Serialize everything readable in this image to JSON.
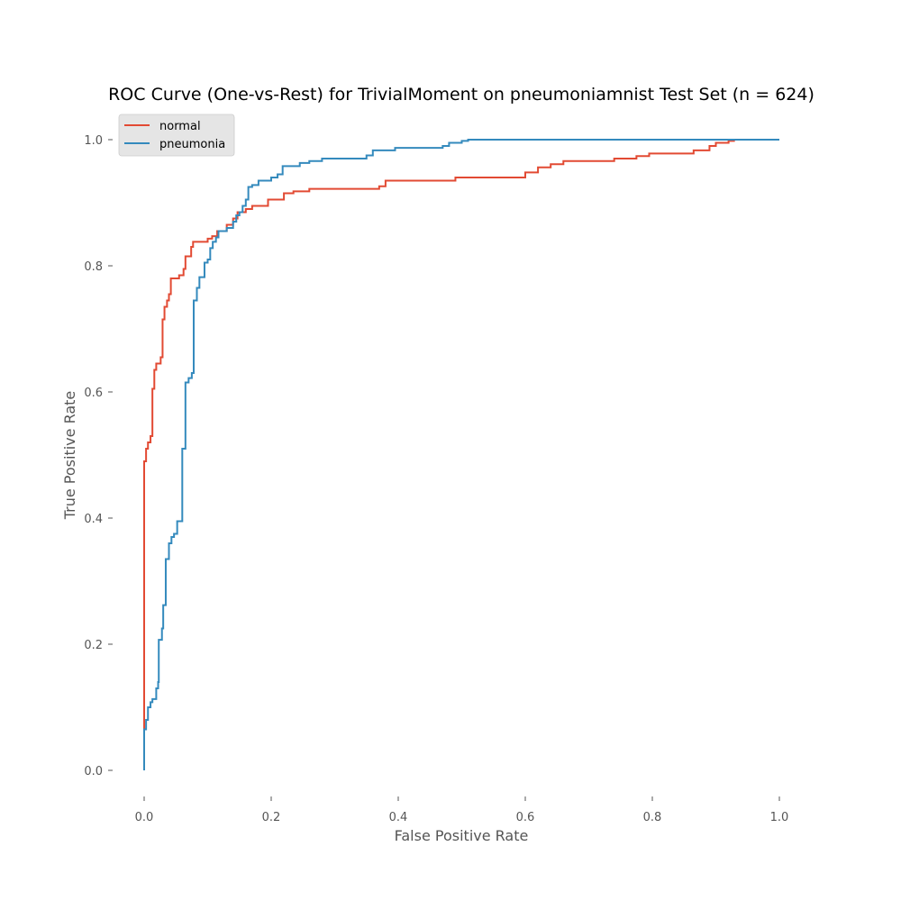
{
  "chart_data": {
    "type": "line",
    "title": "ROC Curve (One-vs-Rest) for TrivialMoment on pneumoniamnist Test Set (n = 624)",
    "xlabel": "False Positive Rate",
    "ylabel": "True Positive Rate",
    "xlim": [
      0.0,
      1.0
    ],
    "ylim": [
      0.0,
      1.0
    ],
    "xticks": [
      "0.0",
      "0.2",
      "0.4",
      "0.6",
      "0.8",
      "1.0"
    ],
    "yticks": [
      "0.0",
      "0.2",
      "0.4",
      "0.6",
      "0.8",
      "1.0"
    ],
    "grid": false,
    "legend_position": "upper-left",
    "series": [
      {
        "name": "normal",
        "color": "#E24A33",
        "points": [
          [
            0.0,
            0.0
          ],
          [
            0.0,
            0.49
          ],
          [
            0.003,
            0.49
          ],
          [
            0.003,
            0.51
          ],
          [
            0.006,
            0.51
          ],
          [
            0.006,
            0.52
          ],
          [
            0.01,
            0.52
          ],
          [
            0.01,
            0.53
          ],
          [
            0.013,
            0.53
          ],
          [
            0.013,
            0.605
          ],
          [
            0.016,
            0.605
          ],
          [
            0.016,
            0.635
          ],
          [
            0.019,
            0.635
          ],
          [
            0.019,
            0.645
          ],
          [
            0.026,
            0.645
          ],
          [
            0.026,
            0.655
          ],
          [
            0.029,
            0.655
          ],
          [
            0.029,
            0.715
          ],
          [
            0.032,
            0.715
          ],
          [
            0.032,
            0.735
          ],
          [
            0.036,
            0.735
          ],
          [
            0.036,
            0.745
          ],
          [
            0.039,
            0.745
          ],
          [
            0.039,
            0.755
          ],
          [
            0.042,
            0.755
          ],
          [
            0.042,
            0.78
          ],
          [
            0.055,
            0.78
          ],
          [
            0.055,
            0.785
          ],
          [
            0.062,
            0.785
          ],
          [
            0.062,
            0.795
          ],
          [
            0.065,
            0.795
          ],
          [
            0.065,
            0.815
          ],
          [
            0.074,
            0.815
          ],
          [
            0.074,
            0.83
          ],
          [
            0.077,
            0.83
          ],
          [
            0.077,
            0.838
          ],
          [
            0.1,
            0.838
          ],
          [
            0.1,
            0.843
          ],
          [
            0.107,
            0.843
          ],
          [
            0.107,
            0.847
          ],
          [
            0.115,
            0.847
          ],
          [
            0.115,
            0.855
          ],
          [
            0.13,
            0.855
          ],
          [
            0.13,
            0.865
          ],
          [
            0.14,
            0.865
          ],
          [
            0.14,
            0.875
          ],
          [
            0.147,
            0.875
          ],
          [
            0.147,
            0.885
          ],
          [
            0.16,
            0.885
          ],
          [
            0.16,
            0.89
          ],
          [
            0.17,
            0.89
          ],
          [
            0.17,
            0.895
          ],
          [
            0.195,
            0.895
          ],
          [
            0.195,
            0.905
          ],
          [
            0.22,
            0.905
          ],
          [
            0.22,
            0.915
          ],
          [
            0.235,
            0.915
          ],
          [
            0.235,
            0.918
          ],
          [
            0.26,
            0.918
          ],
          [
            0.26,
            0.922
          ],
          [
            0.37,
            0.922
          ],
          [
            0.37,
            0.926
          ],
          [
            0.38,
            0.926
          ],
          [
            0.38,
            0.935
          ],
          [
            0.49,
            0.935
          ],
          [
            0.49,
            0.94
          ],
          [
            0.6,
            0.94
          ],
          [
            0.6,
            0.948
          ],
          [
            0.62,
            0.948
          ],
          [
            0.62,
            0.956
          ],
          [
            0.64,
            0.956
          ],
          [
            0.64,
            0.961
          ],
          [
            0.66,
            0.961
          ],
          [
            0.66,
            0.966
          ],
          [
            0.74,
            0.966
          ],
          [
            0.74,
            0.97
          ],
          [
            0.775,
            0.97
          ],
          [
            0.775,
            0.974
          ],
          [
            0.795,
            0.974
          ],
          [
            0.795,
            0.978
          ],
          [
            0.865,
            0.978
          ],
          [
            0.865,
            0.983
          ],
          [
            0.89,
            0.983
          ],
          [
            0.89,
            0.99
          ],
          [
            0.9,
            0.99
          ],
          [
            0.9,
            0.995
          ],
          [
            0.92,
            0.995
          ],
          [
            0.92,
            0.998
          ],
          [
            0.93,
            0.998
          ]
        ]
      },
      {
        "name": "pneumonia",
        "color": "#348ABD",
        "points": [
          [
            0.0,
            0.0
          ],
          [
            0.0,
            0.065
          ],
          [
            0.003,
            0.065
          ],
          [
            0.003,
            0.08
          ],
          [
            0.006,
            0.08
          ],
          [
            0.006,
            0.1
          ],
          [
            0.01,
            0.1
          ],
          [
            0.01,
            0.108
          ],
          [
            0.013,
            0.108
          ],
          [
            0.013,
            0.113
          ],
          [
            0.019,
            0.113
          ],
          [
            0.019,
            0.13
          ],
          [
            0.022,
            0.13
          ],
          [
            0.022,
            0.14
          ],
          [
            0.023,
            0.14
          ],
          [
            0.023,
            0.207
          ],
          [
            0.028,
            0.207
          ],
          [
            0.028,
            0.225
          ],
          [
            0.03,
            0.225
          ],
          [
            0.03,
            0.262
          ],
          [
            0.034,
            0.262
          ],
          [
            0.034,
            0.335
          ],
          [
            0.039,
            0.335
          ],
          [
            0.039,
            0.36
          ],
          [
            0.043,
            0.36
          ],
          [
            0.043,
            0.37
          ],
          [
            0.047,
            0.37
          ],
          [
            0.047,
            0.375
          ],
          [
            0.052,
            0.375
          ],
          [
            0.052,
            0.395
          ],
          [
            0.06,
            0.395
          ],
          [
            0.06,
            0.51
          ],
          [
            0.065,
            0.51
          ],
          [
            0.065,
            0.615
          ],
          [
            0.07,
            0.615
          ],
          [
            0.07,
            0.622
          ],
          [
            0.075,
            0.622
          ],
          [
            0.075,
            0.63
          ],
          [
            0.078,
            0.63
          ],
          [
            0.078,
            0.745
          ],
          [
            0.083,
            0.745
          ],
          [
            0.083,
            0.765
          ],
          [
            0.087,
            0.765
          ],
          [
            0.087,
            0.782
          ],
          [
            0.095,
            0.782
          ],
          [
            0.095,
            0.805
          ],
          [
            0.1,
            0.805
          ],
          [
            0.1,
            0.81
          ],
          [
            0.104,
            0.81
          ],
          [
            0.104,
            0.828
          ],
          [
            0.108,
            0.828
          ],
          [
            0.108,
            0.838
          ],
          [
            0.113,
            0.838
          ],
          [
            0.113,
            0.845
          ],
          [
            0.117,
            0.845
          ],
          [
            0.117,
            0.855
          ],
          [
            0.13,
            0.855
          ],
          [
            0.13,
            0.86
          ],
          [
            0.14,
            0.86
          ],
          [
            0.14,
            0.87
          ],
          [
            0.145,
            0.87
          ],
          [
            0.145,
            0.88
          ],
          [
            0.15,
            0.88
          ],
          [
            0.15,
            0.885
          ],
          [
            0.155,
            0.885
          ],
          [
            0.155,
            0.895
          ],
          [
            0.16,
            0.895
          ],
          [
            0.16,
            0.905
          ],
          [
            0.164,
            0.905
          ],
          [
            0.164,
            0.925
          ],
          [
            0.17,
            0.925
          ],
          [
            0.17,
            0.928
          ],
          [
            0.18,
            0.928
          ],
          [
            0.18,
            0.935
          ],
          [
            0.2,
            0.935
          ],
          [
            0.2,
            0.94
          ],
          [
            0.21,
            0.94
          ],
          [
            0.21,
            0.945
          ],
          [
            0.218,
            0.945
          ],
          [
            0.218,
            0.958
          ],
          [
            0.245,
            0.958
          ],
          [
            0.245,
            0.963
          ],
          [
            0.26,
            0.963
          ],
          [
            0.26,
            0.966
          ],
          [
            0.28,
            0.966
          ],
          [
            0.28,
            0.97
          ],
          [
            0.35,
            0.97
          ],
          [
            0.35,
            0.975
          ],
          [
            0.36,
            0.975
          ],
          [
            0.36,
            0.983
          ],
          [
            0.395,
            0.983
          ],
          [
            0.395,
            0.987
          ],
          [
            0.47,
            0.987
          ],
          [
            0.47,
            0.99
          ],
          [
            0.48,
            0.99
          ],
          [
            0.48,
            0.995
          ],
          [
            0.5,
            0.995
          ],
          [
            0.5,
            0.998
          ],
          [
            0.51,
            0.998
          ],
          [
            0.51,
            1.0
          ],
          [
            1.0,
            1.0
          ]
        ]
      }
    ]
  }
}
